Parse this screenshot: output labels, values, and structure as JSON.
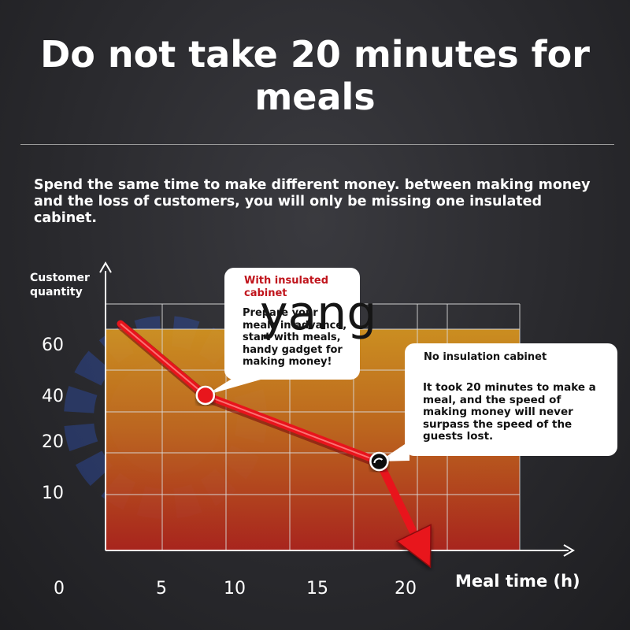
{
  "title": "Do not take 20 minutes for meals",
  "subtitle": "Spend the same time to make different money. between making money and the loss of customers, you will only be missing one insulated cabinet.",
  "watermark": "yang",
  "callouts": {
    "insulated": {
      "title": "With insulated cabinet",
      "body": "Prepare your meals in advance, start with meals, handy gadget for making money!"
    },
    "no_insulation": {
      "title": "No insulation cabinet",
      "body": "It took 20 minutes to make a meal, and the speed of making money will never surpass the speed of the guests lost."
    }
  },
  "colors": {
    "background": "#2a2a2e",
    "fill_top": "#d8961f",
    "fill_bottom": "#b3241c",
    "line": "#e8141c",
    "accent_red": "#c0141c"
  },
  "chart_data": {
    "type": "line",
    "ylabel": "Customer quantity",
    "xlabel": "Meal time (h)",
    "x_ticks": [
      "0",
      "5",
      "10",
      "15",
      "20"
    ],
    "y_ticks": [
      "10",
      "20",
      "40",
      "60"
    ],
    "grid": true,
    "series": [
      {
        "x": [
          3,
          8,
          18.5,
          21.5
        ],
        "y": [
          67,
          40,
          16,
          -5
        ],
        "markers": [
          {
            "x": 8,
            "y": 40,
            "label": "With insulated cabinet"
          },
          {
            "x": 18.5,
            "y": 16,
            "label": "No insulation cabinet"
          }
        ]
      }
    ]
  }
}
